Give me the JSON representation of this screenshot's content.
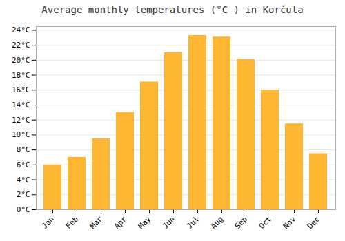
{
  "chart_data": {
    "type": "bar",
    "title": "Average monthly temperatures (°C ) in Korčula",
    "categories": [
      "Jan",
      "Feb",
      "Mar",
      "Apr",
      "May",
      "Jun",
      "Jul",
      "Aug",
      "Sep",
      "Oct",
      "Nov",
      "Dec"
    ],
    "values": [
      6.0,
      7.0,
      9.5,
      13.0,
      17.1,
      21.0,
      23.3,
      23.1,
      20.1,
      16.0,
      11.5,
      7.5
    ],
    "color": "#FFB733",
    "ylim": [
      0,
      24.5
    ],
    "yticks": [
      {
        "value": 0,
        "label": "0°C"
      },
      {
        "value": 2,
        "label": "2°C"
      },
      {
        "value": 4,
        "label": "4°C"
      },
      {
        "value": 6,
        "label": "6°C"
      },
      {
        "value": 8,
        "label": "8°C"
      },
      {
        "value": 10,
        "label": "10°C"
      },
      {
        "value": 12,
        "label": "12°C"
      },
      {
        "value": 14,
        "label": "14°C"
      },
      {
        "value": 16,
        "label": "16°C"
      },
      {
        "value": 18,
        "label": "18°C"
      },
      {
        "value": 20,
        "label": "20°C"
      },
      {
        "value": 22,
        "label": "22°C"
      },
      {
        "value": 24,
        "label": "24°C"
      }
    ],
    "grid": true
  }
}
